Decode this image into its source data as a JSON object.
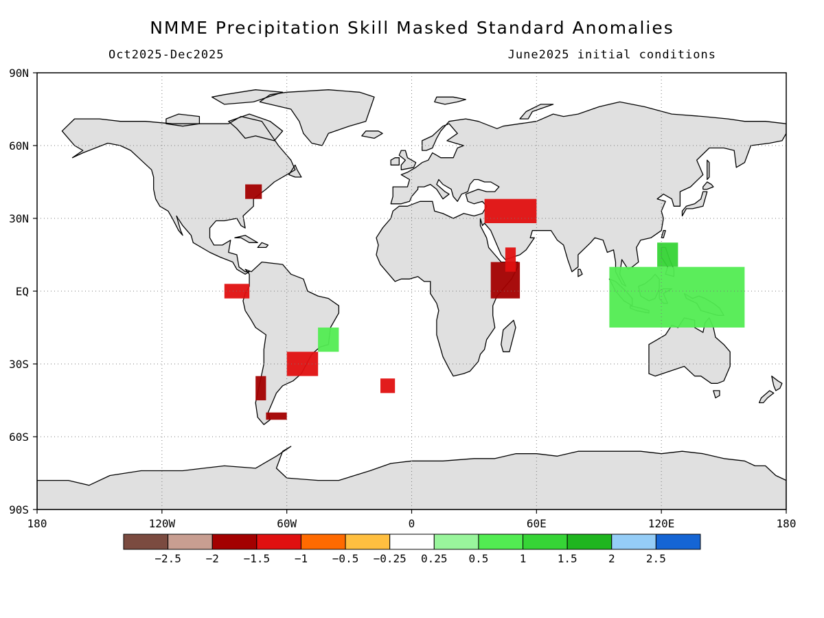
{
  "header": {
    "title": "NMME Precipitation Skill Masked Standard Anomalies",
    "period": "Oct2025-Dec2025",
    "initial_conditions": "June2025 initial conditions"
  },
  "map": {
    "projection": "equirectangular",
    "lon_range": [
      -180,
      180
    ],
    "lat_range": [
      -90,
      90
    ],
    "lon_ticks": [
      {
        "value": -180,
        "label": "180"
      },
      {
        "value": -120,
        "label": "120W"
      },
      {
        "value": -60,
        "label": "60W"
      },
      {
        "value": 0,
        "label": "0"
      },
      {
        "value": 60,
        "label": "60E"
      },
      {
        "value": 120,
        "label": "120E"
      },
      {
        "value": 180,
        "label": "180"
      }
    ],
    "lat_ticks": [
      {
        "value": 90,
        "label": "90N"
      },
      {
        "value": 60,
        "label": "60N"
      },
      {
        "value": 30,
        "label": "30N"
      },
      {
        "value": 0,
        "label": "EQ"
      },
      {
        "value": -30,
        "label": "30S"
      },
      {
        "value": -60,
        "label": "60S"
      },
      {
        "value": -90,
        "label": "90S"
      }
    ],
    "grid": "dotted",
    "land_color": "#e0e0e0",
    "coast_color": "#000000",
    "anomaly_regions": [
      {
        "area": "East Africa",
        "lon": [
          38,
          52
        ],
        "lat": [
          -3,
          12
        ],
        "value": -1.75
      },
      {
        "area": "Horn of Africa",
        "lon": [
          45,
          50
        ],
        "lat": [
          8,
          18
        ],
        "value": -1.25
      },
      {
        "area": "Middle East",
        "lon": [
          35,
          60
        ],
        "lat": [
          28,
          38
        ],
        "value": -1.0
      },
      {
        "area": "Southeast South America",
        "lon": [
          -60,
          -45
        ],
        "lat": [
          -35,
          -25
        ],
        "value": -1.0
      },
      {
        "area": "Central Chile",
        "lon": [
          -75,
          -70
        ],
        "lat": [
          -45,
          -35
        ],
        "value": -1.75
      },
      {
        "area": "Southern Patagonia",
        "lon": [
          -70,
          -60
        ],
        "lat": [
          -53,
          -50
        ],
        "value": -1.75
      },
      {
        "area": "Eastern US",
        "lon": [
          -80,
          -72
        ],
        "lat": [
          38,
          44
        ],
        "value": -1.75
      },
      {
        "area": "Maritime Continent",
        "lon": [
          95,
          160
        ],
        "lat": [
          -15,
          10
        ],
        "value": 0.75
      },
      {
        "area": "Philippines",
        "lon": [
          118,
          128
        ],
        "lat": [
          10,
          20
        ],
        "value": 1.25
      },
      {
        "area": "Eastern Brazil",
        "lon": [
          -45,
          -35
        ],
        "lat": [
          -25,
          -15
        ],
        "value": 0.75
      },
      {
        "area": "Equatorial East Pacific",
        "lon": [
          -90,
          -78
        ],
        "lat": [
          -3,
          3
        ],
        "value": -1.0
      },
      {
        "area": "South Atlantic Island",
        "lon": [
          -15,
          -8
        ],
        "lat": [
          -42,
          -36
        ],
        "value": -1.0
      }
    ]
  },
  "colorbar": {
    "colors": [
      "#7b4b40",
      "#c89e91",
      "#a30000",
      "#e01010",
      "#ff6a00",
      "#ffbf40",
      "#ffffff",
      "#99f59c",
      "#52ec52",
      "#36d436",
      "#1fb51f",
      "#95cdf7",
      "#1565d4"
    ],
    "labels": [
      "-2.5",
      "-2",
      "-1.5",
      "-1",
      "-0.5",
      "-0.25",
      "0.25",
      "0.5",
      "1",
      "1.5",
      "2",
      "2.5"
    ]
  }
}
